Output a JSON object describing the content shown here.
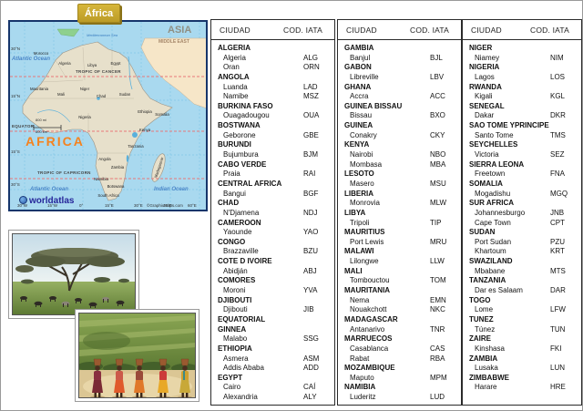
{
  "header_tag": {
    "label": "África"
  },
  "map": {
    "asia": "ASIA",
    "middle_east": "MIDDLE EAST",
    "africa": "AFRICA",
    "mediterranean": "Mediterranean Sea",
    "atlantic_ocean_top": "Atlantic Ocean",
    "atlantic_ocean_bottom": "Atlantic Ocean",
    "indian_ocean": "Indian Ocean",
    "tropic_of_cancer": "TROPIC OF CANCER",
    "equator": "EQUATOR",
    "tropic_of_capricorn": "TROPIC OF CAPRICORN",
    "credit": "worldatlas",
    "copyright": "©GraphicMaps.com",
    "scale_mi": "800 mi",
    "scale_km": "800 km",
    "lat_labels": [
      "30°N",
      "15°N",
      "15°S",
      "30°S"
    ],
    "lon_labels": [
      "30°W",
      "15°W",
      "0°",
      "15°E",
      "30°E",
      "45°E",
      "60°E"
    ],
    "countries": [
      "Morocco",
      "Algeria",
      "Libya",
      "Egypt",
      "Mauritania",
      "Mali",
      "Niger",
      "Chad",
      "Sudan",
      "Nigeria",
      "Ethiopia",
      "Kenya",
      "Tanzania",
      "Angola",
      "Zambia",
      "Namibia",
      "Botswana",
      "South Africa",
      "Madagascar",
      "Somalia"
    ]
  },
  "tables": [
    {
      "headers": [
        "CIUDAD",
        "COD. IATA"
      ],
      "rows": [
        {
          "label": "ALGERIA"
        },
        {
          "label": "Algeria",
          "code": "ALG"
        },
        {
          "label": "Oran",
          "code": "ORN"
        },
        {
          "label": "ANGOLA"
        },
        {
          "label": "Luanda",
          "code": "LAD"
        },
        {
          "label": "Namibe",
          "code": "MSZ"
        },
        {
          "label": "BURKINA FASO"
        },
        {
          "label": "Ouagadougou",
          "code": "OUA"
        },
        {
          "label": "BOSTWANA"
        },
        {
          "label": "Geborone",
          "code": "GBE"
        },
        {
          "label": "BURUNDI"
        },
        {
          "label": "Bujumbura",
          "code": "BJM"
        },
        {
          "label": "CABO VERDE"
        },
        {
          "label": "Praia",
          "code": "RAI"
        },
        {
          "label": "CENTRAL AFRICA"
        },
        {
          "label": "Bangui",
          "code": "BGF"
        },
        {
          "label": "CHAD"
        },
        {
          "label": "N'Djamena",
          "code": "NDJ"
        },
        {
          "label": "CAMEROON"
        },
        {
          "label": "Yaounde",
          "code": "YAO"
        },
        {
          "label": "CONGO"
        },
        {
          "label": "Brazzaville",
          "code": "BZU"
        },
        {
          "label": "COTE D IVOIRE"
        },
        {
          "label": "Abidján",
          "code": "ABJ"
        },
        {
          "label": "COMORES"
        },
        {
          "label": "Moroni",
          "code": "YVA"
        },
        {
          "label": "DJIBOUTI"
        },
        {
          "label": "Djibouti",
          "code": "JIB"
        },
        {
          "label": "EQUATORIAL"
        },
        {
          "label": "GINNEA"
        },
        {
          "label": "Malabo",
          "code": "SSG"
        },
        {
          "label": "ETHIOPIA"
        },
        {
          "label": "Asmera",
          "code": "ASM"
        },
        {
          "label": "Addis Ababa",
          "code": "ADD"
        },
        {
          "label": "EGYPT"
        },
        {
          "label": "Cairo",
          "code": "CAÍ"
        },
        {
          "label": "Alexandria",
          "code": "ALY"
        }
      ]
    },
    {
      "headers": [
        "CIUDAD",
        "COD. IATA"
      ],
      "rows": [
        {
          "label": "GAMBIA"
        },
        {
          "label": "Banjul",
          "code": "BJL"
        },
        {
          "label": "GABON"
        },
        {
          "label": "Libreville",
          "code": "LBV"
        },
        {
          "label": "GHANA"
        },
        {
          "label": "Accra",
          "code": "ACC"
        },
        {
          "label": "GUINEA BISSAU"
        },
        {
          "label": "Bissau",
          "code": "BXO"
        },
        {
          "label": "GUINEA"
        },
        {
          "label": "Conakry",
          "code": "CKY"
        },
        {
          "label": "KENYA"
        },
        {
          "label": "Nairobi",
          "code": "NBO"
        },
        {
          "label": "Mombasa",
          "code": "MBA"
        },
        {
          "label": "LESOTO"
        },
        {
          "label": "Masero",
          "code": "MSU"
        },
        {
          "label": "LIBERIA"
        },
        {
          "label": "Monrovia",
          "code": "MLW"
        },
        {
          "label": "LIBYA"
        },
        {
          "label": "Tripoli",
          "code": "TIP"
        },
        {
          "label": "MAURITIUS"
        },
        {
          "label": "Port Lewis",
          "code": "MRU"
        },
        {
          "label": "MALAWI"
        },
        {
          "label": "Lilongwe",
          "code": "LLW"
        },
        {
          "label": "MALI"
        },
        {
          "label": "Tombouctou",
          "code": "TOM"
        },
        {
          "label": "MAURITANIA"
        },
        {
          "label": "Nema",
          "code": "EMN"
        },
        {
          "label": "Nouakchott",
          "code": "NKC"
        },
        {
          "label": "MADAGASCAR"
        },
        {
          "label": "Antanarivo",
          "code": "TNR"
        },
        {
          "label": "MARRUECOS"
        },
        {
          "label": "Casablanca",
          "code": "CAS"
        },
        {
          "label": "Rabat",
          "code": "RBA"
        },
        {
          "label": "MOZAMBIQUE"
        },
        {
          "label": "Maputo",
          "code": "MPM"
        },
        {
          "label": "NAMIBIA"
        },
        {
          "label": "Luderitz",
          "code": "LUD"
        }
      ]
    },
    {
      "headers": [
        "CIUDAD",
        "COD. IATA"
      ],
      "rows": [
        {
          "label": "NIGER"
        },
        {
          "label": "Niamey",
          "code": "NIM"
        },
        {
          "label": "NIGERIA"
        },
        {
          "label": "Lagos",
          "code": "LOS"
        },
        {
          "label": "RWANDA"
        },
        {
          "label": "Kigali",
          "code": "KGL"
        },
        {
          "label": "SENEGAL"
        },
        {
          "label": "Dakar",
          "code": "DKR"
        },
        {
          "label": "SAO TOME YPRINCIPE"
        },
        {
          "label": "Santo Tome",
          "code": "TMS"
        },
        {
          "label": "SEYCHELLES"
        },
        {
          "label": "Victoria",
          "code": "SEZ"
        },
        {
          "label": "SIERRA LEONA"
        },
        {
          "label": "Freetown",
          "code": "FNA"
        },
        {
          "label": "SOMALIA"
        },
        {
          "label": "Mogadishu",
          "code": "MGQ"
        },
        {
          "label": "SUR AFRICA"
        },
        {
          "label": "Johannesburgo",
          "code": "JNB"
        },
        {
          "label": "Cape Town",
          "code": "CPT"
        },
        {
          "label": "SUDAN"
        },
        {
          "label": "Port Sudan",
          "code": "PZU"
        },
        {
          "label": "Khartoum",
          "code": "KRT"
        },
        {
          "label": "SWAZILAND"
        },
        {
          "label": "Mbabane",
          "code": "MTS"
        },
        {
          "label": "TANZANIA"
        },
        {
          "label": "Dar es Salaam",
          "code": "DAR"
        },
        {
          "label": "TOGO"
        },
        {
          "label": "Lome",
          "code": "LFW"
        },
        {
          "label": "TUNEZ"
        },
        {
          "label": "Túnez",
          "code": "TUN"
        },
        {
          "label": "ZAIRE"
        },
        {
          "label": "Kinshasa",
          "code": "FKI"
        },
        {
          "label": "ZAMBIA"
        },
        {
          "label": "Lusaka",
          "code": "LUN"
        },
        {
          "label": "ZIMBABWE"
        },
        {
          "label": "Harare",
          "code": "HRE"
        }
      ]
    }
  ]
}
